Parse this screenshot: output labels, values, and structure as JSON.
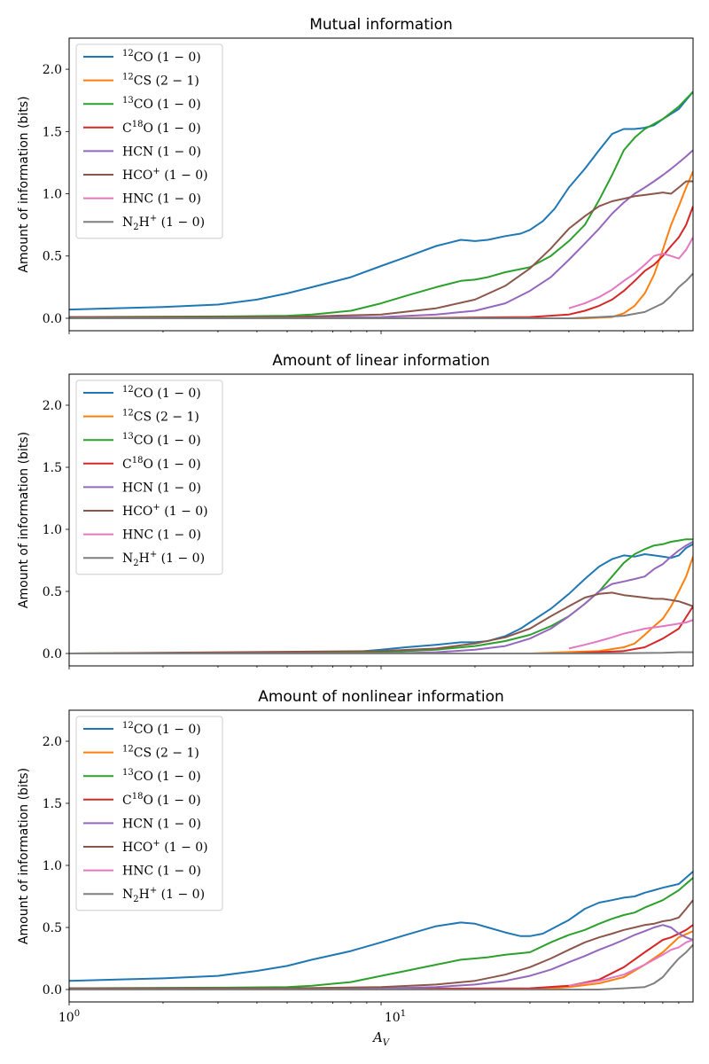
{
  "chart_data": [
    {
      "type": "line",
      "title": "Mutual information",
      "ylabel": "Amount of information (bits)",
      "xlabel": "",
      "xscale": "log",
      "xlim": [
        1,
        100
      ],
      "ylim": [
        -0.1,
        2.25
      ],
      "yticks": [
        "0.0",
        "0.5",
        "1.0",
        "1.5",
        "2.0"
      ],
      "legend_position": "upper left",
      "series": [
        {
          "name": "$^{12}$CO$\\,(1-0)$",
          "color": "#1f77b4",
          "x": [
            1,
            2,
            3,
            4,
            5,
            6,
            8,
            10,
            12,
            15,
            18,
            20,
            22,
            25,
            28,
            30,
            33,
            36,
            40,
            45,
            50,
            55,
            60,
            65,
            70,
            75,
            80,
            90,
            100
          ],
          "y": [
            0.07,
            0.09,
            0.11,
            0.15,
            0.2,
            0.25,
            0.33,
            0.42,
            0.49,
            0.58,
            0.63,
            0.62,
            0.63,
            0.66,
            0.68,
            0.71,
            0.78,
            0.88,
            1.05,
            1.2,
            1.35,
            1.48,
            1.52,
            1.52,
            1.53,
            1.55,
            1.6,
            1.68,
            1.82
          ]
        },
        {
          "name": "$^{12}$CS$\\,(2-1)$",
          "color": "#ff7f0e",
          "x": [
            1,
            10,
            30,
            45,
            55,
            60,
            65,
            70,
            75,
            80,
            85,
            90,
            95,
            100
          ],
          "y": [
            0.0,
            0.0,
            0.0,
            0.0,
            0.01,
            0.04,
            0.1,
            0.2,
            0.35,
            0.55,
            0.75,
            0.9,
            1.05,
            1.18
          ]
        },
        {
          "name": "$^{13}$CO$\\,(1-0)$",
          "color": "#2ca02c",
          "x": [
            1,
            3,
            5,
            6,
            8,
            10,
            12,
            15,
            18,
            20,
            22,
            25,
            30,
            35,
            40,
            45,
            50,
            55,
            60,
            65,
            70,
            80,
            90,
            100
          ],
          "y": [
            0.01,
            0.015,
            0.02,
            0.03,
            0.06,
            0.12,
            0.18,
            0.25,
            0.3,
            0.31,
            0.33,
            0.37,
            0.41,
            0.5,
            0.62,
            0.75,
            0.95,
            1.15,
            1.35,
            1.45,
            1.52,
            1.6,
            1.7,
            1.82
          ]
        },
        {
          "name": "C$^{18}$O$\\,(1-0)$",
          "color": "#d62728",
          "x": [
            1,
            10,
            30,
            40,
            45,
            50,
            55,
            60,
            65,
            70,
            75,
            80,
            85,
            90,
            95,
            100
          ],
          "y": [
            0.0,
            0.0,
            0.01,
            0.03,
            0.06,
            0.1,
            0.15,
            0.22,
            0.3,
            0.38,
            0.43,
            0.5,
            0.58,
            0.65,
            0.75,
            0.9
          ]
        },
        {
          "name": "HCN$\\,(1-0)$",
          "color": "#9467bd",
          "x": [
            1,
            10,
            15,
            20,
            25,
            30,
            35,
            40,
            45,
            50,
            55,
            60,
            65,
            70,
            75,
            80,
            85,
            90,
            95,
            100
          ],
          "y": [
            0.0,
            0.01,
            0.03,
            0.06,
            0.12,
            0.22,
            0.33,
            0.47,
            0.6,
            0.72,
            0.84,
            0.93,
            1.0,
            1.05,
            1.1,
            1.15,
            1.2,
            1.25,
            1.3,
            1.35
          ]
        },
        {
          "name": "HCO$^+$$\\,(1-0)$",
          "color": "#8c564b",
          "x": [
            1,
            5,
            10,
            15,
            20,
            25,
            30,
            35,
            40,
            45,
            50,
            55,
            60,
            65,
            70,
            75,
            80,
            85,
            90,
            95,
            100
          ],
          "y": [
            0.01,
            0.01,
            0.03,
            0.08,
            0.15,
            0.26,
            0.4,
            0.56,
            0.72,
            0.82,
            0.9,
            0.94,
            0.96,
            0.98,
            0.99,
            1.0,
            1.01,
            1.0,
            1.05,
            1.1,
            1.1
          ]
        },
        {
          "name": "HNC$\\,(1-0)$",
          "color": "#e377c2",
          "x": [
            40,
            45,
            50,
            55,
            60,
            65,
            70,
            75,
            80,
            85,
            90,
            95,
            100
          ],
          "y": [
            0.08,
            0.12,
            0.17,
            0.23,
            0.3,
            0.36,
            0.43,
            0.5,
            0.52,
            0.5,
            0.48,
            0.55,
            0.65
          ]
        },
        {
          "name": "N$_2$H$^+$$\\,(1-0)$",
          "color": "#7f7f7f",
          "x": [
            1,
            10,
            40,
            50,
            60,
            70,
            80,
            85,
            90,
            95,
            100
          ],
          "y": [
            0.0,
            0.0,
            0.0,
            0.01,
            0.02,
            0.05,
            0.12,
            0.18,
            0.25,
            0.3,
            0.36
          ]
        }
      ]
    },
    {
      "type": "line",
      "title": "Amount of linear information",
      "ylabel": "Amount of information (bits)",
      "xlabel": "",
      "xscale": "log",
      "xlim": [
        1,
        100
      ],
      "ylim": [
        -0.1,
        2.25
      ],
      "yticks": [
        "0.0",
        "0.5",
        "1.0",
        "1.5",
        "2.0"
      ],
      "legend_position": "upper left",
      "series": [
        {
          "name": "$^{12}$CO$\\,(1-0)$",
          "color": "#1f77b4",
          "x": [
            1,
            5,
            8,
            10,
            12,
            15,
            18,
            20,
            22,
            25,
            28,
            30,
            35,
            40,
            45,
            50,
            55,
            60,
            65,
            70,
            75,
            80,
            85,
            90,
            95,
            100
          ],
          "y": [
            0.0,
            0.0,
            0.01,
            0.03,
            0.05,
            0.07,
            0.09,
            0.09,
            0.1,
            0.14,
            0.2,
            0.25,
            0.36,
            0.48,
            0.6,
            0.7,
            0.76,
            0.79,
            0.78,
            0.8,
            0.79,
            0.78,
            0.77,
            0.79,
            0.85,
            0.88
          ]
        },
        {
          "name": "$^{12}$CS$\\,(2-1)$",
          "color": "#ff7f0e",
          "x": [
            1,
            30,
            50,
            60,
            65,
            70,
            75,
            80,
            85,
            90,
            95,
            100
          ],
          "y": [
            0.0,
            0.0,
            0.02,
            0.05,
            0.08,
            0.15,
            0.22,
            0.28,
            0.38,
            0.5,
            0.62,
            0.78
          ]
        },
        {
          "name": "$^{13}$CO$\\,(1-0)$",
          "color": "#2ca02c",
          "x": [
            1,
            10,
            15,
            20,
            25,
            30,
            35,
            40,
            45,
            50,
            55,
            60,
            65,
            70,
            75,
            80,
            85,
            90,
            95,
            100
          ],
          "y": [
            0.0,
            0.01,
            0.03,
            0.06,
            0.1,
            0.15,
            0.22,
            0.3,
            0.4,
            0.5,
            0.62,
            0.73,
            0.8,
            0.84,
            0.87,
            0.88,
            0.9,
            0.91,
            0.92,
            0.92
          ]
        },
        {
          "name": "C$^{18}$O$\\,(1-0)$",
          "color": "#d62728",
          "x": [
            1,
            40,
            60,
            70,
            80,
            90,
            100
          ],
          "y": [
            0.0,
            0.0,
            0.02,
            0.05,
            0.12,
            0.2,
            0.38
          ]
        },
        {
          "name": "HCN$\\,(1-0)$",
          "color": "#9467bd",
          "x": [
            1,
            10,
            15,
            20,
            25,
            30,
            35,
            40,
            45,
            50,
            55,
            60,
            65,
            70,
            75,
            80,
            85,
            90,
            95,
            100
          ],
          "y": [
            0.0,
            0.0,
            0.01,
            0.03,
            0.06,
            0.12,
            0.2,
            0.3,
            0.4,
            0.5,
            0.56,
            0.58,
            0.6,
            0.62,
            0.68,
            0.72,
            0.78,
            0.83,
            0.87,
            0.9
          ]
        },
        {
          "name": "HCO$^+$$\\,(1-0)$",
          "color": "#8c564b",
          "x": [
            1,
            10,
            15,
            20,
            25,
            30,
            35,
            40,
            45,
            50,
            55,
            60,
            65,
            70,
            75,
            80,
            85,
            90,
            95,
            100
          ],
          "y": [
            0.0,
            0.02,
            0.04,
            0.08,
            0.13,
            0.2,
            0.3,
            0.38,
            0.45,
            0.48,
            0.49,
            0.47,
            0.46,
            0.45,
            0.44,
            0.44,
            0.43,
            0.42,
            0.4,
            0.38
          ]
        },
        {
          "name": "HNC$\\,(1-0)$",
          "color": "#e377c2",
          "x": [
            40,
            45,
            50,
            55,
            60,
            65,
            70,
            75,
            80,
            85,
            90,
            95,
            100
          ],
          "y": [
            0.04,
            0.07,
            0.1,
            0.13,
            0.16,
            0.18,
            0.2,
            0.21,
            0.22,
            0.23,
            0.24,
            0.25,
            0.27
          ]
        },
        {
          "name": "N$_2$H$^+$$\\,(1-0)$",
          "color": "#7f7f7f",
          "x": [
            1,
            50,
            80,
            90,
            100
          ],
          "y": [
            0.0,
            0.0,
            0.005,
            0.01,
            0.01
          ]
        }
      ]
    },
    {
      "type": "line",
      "title": "Amount of nonlinear information",
      "ylabel": "Amount of information (bits)",
      "xlabel": "$A_V$",
      "xscale": "log",
      "xlim": [
        1,
        100
      ],
      "ylim": [
        -0.1,
        2.25
      ],
      "yticks": [
        "0.0",
        "0.5",
        "1.0",
        "1.5",
        "2.0"
      ],
      "legend_position": "upper left",
      "series": [
        {
          "name": "$^{12}$CO$\\,(1-0)$",
          "color": "#1f77b4",
          "x": [
            1,
            2,
            3,
            4,
            5,
            6,
            8,
            10,
            12,
            15,
            18,
            20,
            22,
            25,
            28,
            30,
            33,
            36,
            40,
            45,
            50,
            55,
            60,
            65,
            70,
            75,
            80,
            90,
            100
          ],
          "y": [
            0.07,
            0.09,
            0.11,
            0.15,
            0.19,
            0.24,
            0.31,
            0.38,
            0.44,
            0.51,
            0.54,
            0.53,
            0.5,
            0.46,
            0.43,
            0.43,
            0.45,
            0.5,
            0.56,
            0.65,
            0.7,
            0.72,
            0.74,
            0.75,
            0.78,
            0.8,
            0.82,
            0.85,
            0.95
          ]
        },
        {
          "name": "$^{12}$CS$\\,(2-1)$",
          "color": "#ff7f0e",
          "x": [
            1,
            30,
            40,
            50,
            60,
            70,
            80,
            90,
            100
          ],
          "y": [
            0.0,
            0.0,
            0.02,
            0.05,
            0.1,
            0.2,
            0.3,
            0.42,
            0.47
          ]
        },
        {
          "name": "$^{13}$CO$\\,(1-0)$",
          "color": "#2ca02c",
          "x": [
            1,
            3,
            5,
            6,
            8,
            10,
            12,
            15,
            18,
            20,
            22,
            25,
            30,
            35,
            40,
            45,
            50,
            55,
            60,
            65,
            70,
            80,
            90,
            100
          ],
          "y": [
            0.01,
            0.015,
            0.02,
            0.03,
            0.06,
            0.11,
            0.15,
            0.2,
            0.24,
            0.25,
            0.26,
            0.28,
            0.3,
            0.38,
            0.44,
            0.48,
            0.53,
            0.57,
            0.6,
            0.62,
            0.66,
            0.72,
            0.8,
            0.9
          ]
        },
        {
          "name": "C$^{18}$O$\\,(1-0)$",
          "color": "#d62728",
          "x": [
            1,
            30,
            40,
            50,
            60,
            70,
            80,
            85,
            90,
            95,
            100
          ],
          "y": [
            0.0,
            0.01,
            0.03,
            0.08,
            0.18,
            0.3,
            0.4,
            0.42,
            0.45,
            0.48,
            0.52
          ]
        },
        {
          "name": "HCN$\\,(1-0)$",
          "color": "#9467bd",
          "x": [
            1,
            10,
            15,
            20,
            25,
            30,
            35,
            40,
            45,
            50,
            55,
            60,
            65,
            70,
            75,
            80,
            85,
            90,
            95,
            100
          ],
          "y": [
            0.0,
            0.01,
            0.02,
            0.04,
            0.07,
            0.11,
            0.16,
            0.22,
            0.27,
            0.32,
            0.36,
            0.4,
            0.44,
            0.47,
            0.5,
            0.52,
            0.5,
            0.45,
            0.42,
            0.4
          ]
        },
        {
          "name": "HCO$^+$$\\,(1-0)$",
          "color": "#8c564b",
          "x": [
            1,
            5,
            10,
            15,
            20,
            25,
            30,
            35,
            40,
            45,
            50,
            55,
            60,
            65,
            70,
            75,
            80,
            85,
            90,
            95,
            100
          ],
          "y": [
            0.01,
            0.01,
            0.02,
            0.04,
            0.07,
            0.12,
            0.18,
            0.25,
            0.32,
            0.38,
            0.42,
            0.45,
            0.48,
            0.5,
            0.52,
            0.53,
            0.55,
            0.56,
            0.58,
            0.65,
            0.72
          ]
        },
        {
          "name": "HNC$\\,(1-0)$",
          "color": "#e377c2",
          "x": [
            40,
            50,
            60,
            70,
            80,
            85,
            90,
            95,
            100
          ],
          "y": [
            0.03,
            0.07,
            0.12,
            0.2,
            0.28,
            0.32,
            0.34,
            0.38,
            0.4
          ]
        },
        {
          "name": "N$_2$H$^+$$\\,(1-0)$",
          "color": "#7f7f7f",
          "x": [
            1,
            50,
            60,
            70,
            75,
            80,
            85,
            90,
            95,
            100
          ],
          "y": [
            0.0,
            0.0,
            0.01,
            0.02,
            0.05,
            0.1,
            0.18,
            0.25,
            0.3,
            0.36
          ]
        }
      ]
    }
  ],
  "x_axis": {
    "tick_labels": [
      "$10^0$",
      "$10^1$"
    ]
  }
}
